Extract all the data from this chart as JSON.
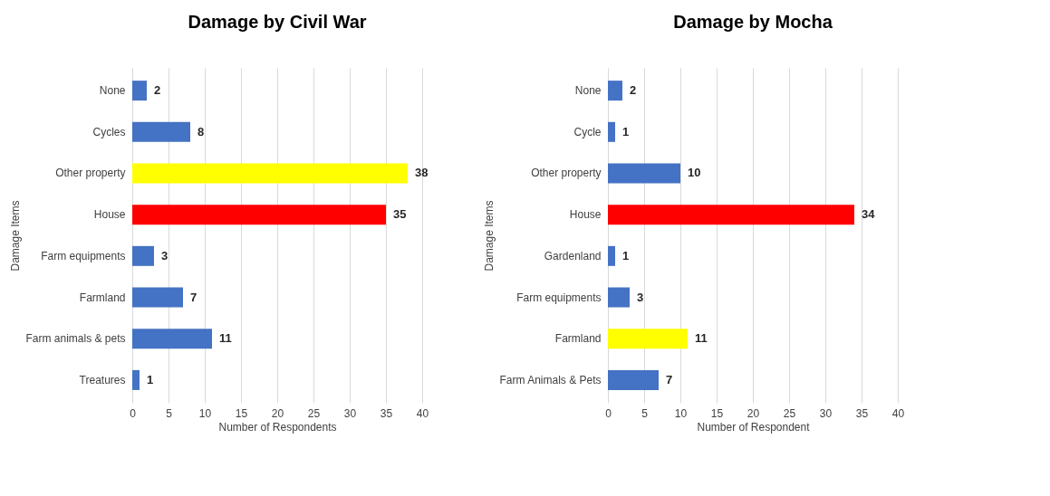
{
  "chart_data": [
    {
      "type": "bar",
      "orientation": "horizontal",
      "title": "Damage by Civil War",
      "xlabel": "Number of Respondents",
      "ylabel": "Damage Items",
      "categories": [
        "None",
        "Cycles",
        "Other property",
        "House",
        "Farm equipments",
        "Farmland",
        "Farm animals & pets",
        "Treatures"
      ],
      "values": [
        2,
        8,
        38,
        35,
        3,
        7,
        11,
        1
      ],
      "colors": [
        "#4472c4",
        "#4472c4",
        "#ffff00",
        "#ff0000",
        "#4472c4",
        "#4472c4",
        "#4472c4",
        "#4472c4"
      ],
      "xlim": [
        0,
        40
      ],
      "xticks": [
        0,
        5,
        10,
        15,
        20,
        25,
        30,
        35,
        40
      ],
      "grid": "x",
      "data_labels": true
    },
    {
      "type": "bar",
      "orientation": "horizontal",
      "title": "Damage by Mocha",
      "xlabel": "Number of Respondent",
      "ylabel": "Damage Items",
      "categories": [
        "None",
        "Cycle",
        "Other property",
        "House",
        "Gardenland",
        "Farm equipments",
        "Farmland",
        "Farm Animals & Pets"
      ],
      "values": [
        2,
        1,
        10,
        34,
        1,
        3,
        11,
        7
      ],
      "colors": [
        "#4472c4",
        "#4472c4",
        "#4472c4",
        "#ff0000",
        "#4472c4",
        "#4472c4",
        "#ffff00",
        "#4472c4"
      ],
      "xlim": [
        0,
        40
      ],
      "xticks": [
        0,
        5,
        10,
        15,
        20,
        25,
        30,
        35,
        40
      ],
      "grid": "x",
      "data_labels": true
    }
  ]
}
